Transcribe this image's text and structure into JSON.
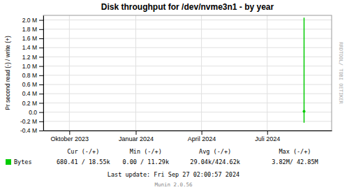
{
  "chart_data": {
    "type": "line",
    "title": "Disk throughput for /dev/nvme3n1 - by year",
    "y_label": "Pr second read (-) / write (+)",
    "xlim": [
      1693000000,
      1727500000
    ],
    "xticks": [
      {
        "value": 1696118400,
        "label": "Oktober 2023"
      },
      {
        "value": 1704067200,
        "label": "Januar 2024"
      },
      {
        "value": 1711929600,
        "label": "April 2024"
      },
      {
        "value": 1719792000,
        "label": "Juli 2024"
      }
    ],
    "ylim": [
      -400000,
      2100000
    ],
    "yticks": [
      {
        "value": -400000,
        "label": "-0.4 M"
      },
      {
        "value": -200000,
        "label": "-0.2 M"
      },
      {
        "value": 0,
        "label": "0.0"
      },
      {
        "value": 200000,
        "label": "0.2 M"
      },
      {
        "value": 400000,
        "label": "0.4 M"
      },
      {
        "value": 600000,
        "label": "0.6 M"
      },
      {
        "value": 800000,
        "label": "0.8 M"
      },
      {
        "value": 1000000,
        "label": "1.0 M"
      },
      {
        "value": 1200000,
        "label": "1.2 M"
      },
      {
        "value": 1400000,
        "label": "1.4 M"
      },
      {
        "value": 1600000,
        "label": "1.6 M"
      },
      {
        "value": 1800000,
        "label": "1.8 M"
      },
      {
        "value": 2000000,
        "label": "2.0 M"
      }
    ],
    "grid": true,
    "series": [
      {
        "name": "Bytes",
        "color": "#00cc00",
        "x": [
          1724200000,
          1724200000
        ],
        "values": [
          2050000,
          -230000
        ]
      },
      {
        "type": "scatter",
        "color": "#00cc00",
        "x": [
          1724200000
        ],
        "values": [
          18550
        ]
      }
    ],
    "annotations": [
      [
        "Cur (-/+)",
        "Min (-/+)",
        "Avg (-/+)",
        "Max (-/+)"
      ],
      [
        "680.41 / 18.55k",
        "0.00 / 11.29k",
        "29.04k/424.62k",
        "3.82M/ 42.85M"
      ],
      [
        "Last update: Fri Sep 27 02:00:57 2024"
      ],
      [
        "Munin 2.0.56"
      ],
      [
        "RRDTOOL/ TOBI OETIKER"
      ]
    ]
  }
}
